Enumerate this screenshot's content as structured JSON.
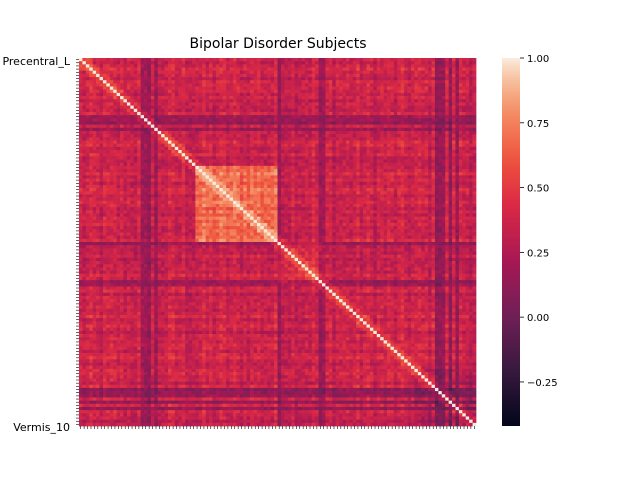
{
  "chart_data": {
    "type": "heatmap",
    "title": "Bipolar Disorder Subjects",
    "xlabel": "",
    "ylabel": "",
    "colormap": "rocket",
    "colorbar": {
      "min": -0.42,
      "max": 1.0,
      "ticks": [
        1.0,
        0.75,
        0.5,
        0.25,
        0.0,
        -0.25
      ],
      "tick_labels": [
        "1.00",
        "0.75",
        "0.50",
        "0.25",
        "0.00",
        "−0.25"
      ]
    },
    "matrix_size": 116,
    "diagonal_value": 1.0,
    "typical_off_diagonal_range": [
      0.05,
      0.6
    ],
    "visible_row_labels": [
      "Precentral_L",
      "Vermis_10"
    ]
  }
}
